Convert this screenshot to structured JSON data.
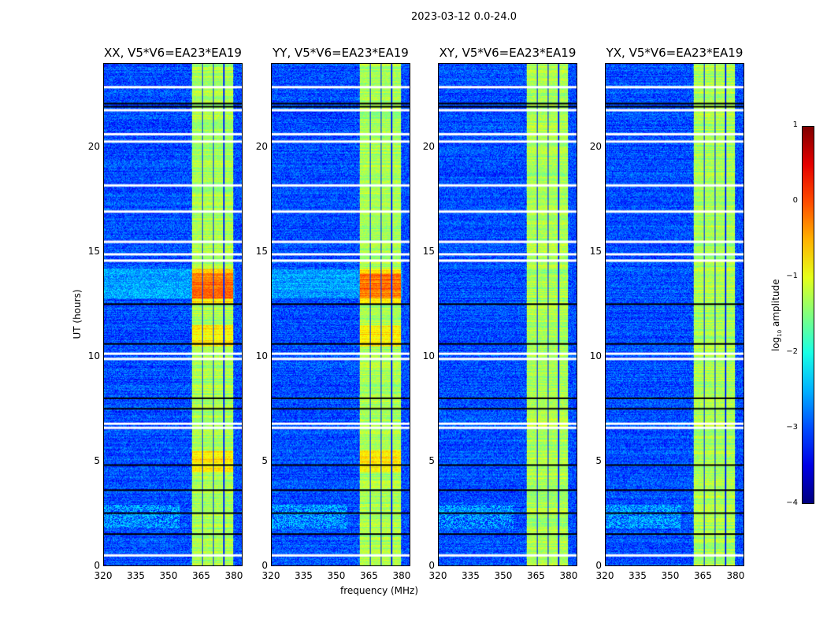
{
  "chart_data": {
    "type": "heatmap",
    "title": "2023-03-12 0.0-24.0",
    "xlabel": "frequency (MHz)",
    "ylabel": "UT (hours)",
    "xlim": [
      320,
      384
    ],
    "ylim": [
      0,
      24
    ],
    "xticks": [
      "320",
      "335",
      "350",
      "365",
      "380"
    ],
    "yticks": [
      "0",
      "5",
      "10",
      "15",
      "20"
    ],
    "panels": [
      {
        "title": "XX, V5*V6=EA23*EA19"
      },
      {
        "title": "YY, V5*V6=EA23*EA19"
      },
      {
        "title": "XY, V5*V6=EA23*EA19"
      },
      {
        "title": "YX, V5*V6=EA23*EA19"
      }
    ],
    "background_log10_amplitude": -3.0,
    "band_mhz": [
      [
        360.5,
        365.2
      ],
      [
        365.8,
        370.3
      ],
      [
        370.9,
        375.3
      ],
      [
        375.9,
        380.0
      ]
    ],
    "band_log10_amplitude": -1.3,
    "flagged_hours_white": [
      0.5,
      6.6,
      6.8,
      9.9,
      10.15,
      14.6,
      14.9,
      15.5,
      16.95,
      18.2,
      20.3,
      20.65,
      21.8,
      22.9
    ],
    "flagged_hours_black": [
      1.5,
      2.5,
      3.6,
      4.8,
      7.5,
      8.0,
      10.6,
      12.5,
      21.95,
      22.1
    ],
    "colorbar": {
      "label": "log10 amplitude",
      "label_main": "log",
      "label_sub": "10",
      "label_rest": " amplitude",
      "ticks": [
        "1",
        "0",
        "−1",
        "−2",
        "−3",
        "−4"
      ],
      "range": [
        -4,
        1
      ],
      "colormap": "jet"
    }
  }
}
